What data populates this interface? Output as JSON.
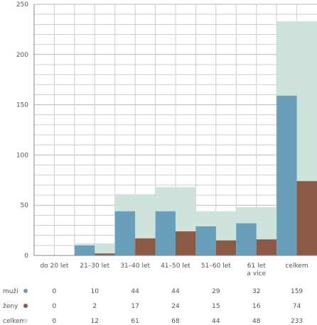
{
  "chart_data": {
    "type": "bar",
    "categories": [
      [
        "do 20 let"
      ],
      [
        "21–30 let"
      ],
      [
        "31–40 let"
      ],
      [
        "41–50 let"
      ],
      [
        "51–60 let"
      ],
      [
        "61 let",
        "a více"
      ],
      [
        "celkem"
      ]
    ],
    "series": [
      {
        "name": "muži",
        "color": "#6a9fbb",
        "values": [
          0,
          10,
          44,
          44,
          29,
          32,
          159
        ]
      },
      {
        "name": "ženy",
        "color": "#8b5a45",
        "values": [
          0,
          2,
          17,
          24,
          15,
          16,
          74
        ]
      },
      {
        "name": "celkem",
        "color": "#cde3db",
        "values": [
          0,
          12,
          61,
          68,
          44,
          48,
          233
        ]
      }
    ],
    "y_ticks": [
      0,
      50,
      100,
      150,
      200,
      250
    ],
    "ylim": [
      0,
      250
    ],
    "grid": true,
    "grid_minor_step": 10,
    "legend": "table-below"
  }
}
